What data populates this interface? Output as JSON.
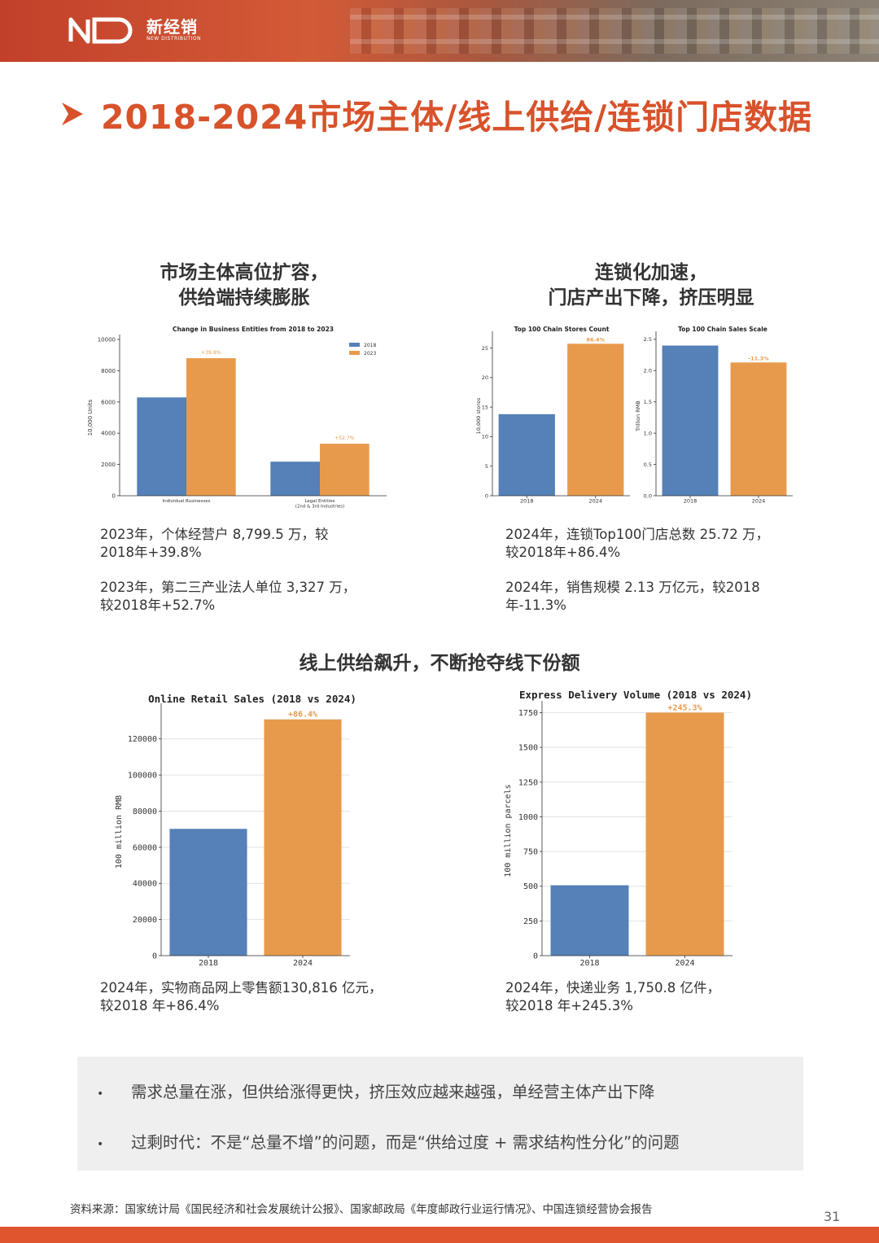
{
  "header": {
    "logo_cn": "新经销",
    "logo_en": "NEW DISTRIBUTION"
  },
  "page_title": "2018-2024市场主体/线上供给/连锁门店数据",
  "section1": {
    "heading_line1": "市场主体高位扩容，",
    "heading_line2": "供给端持续膨胀",
    "text1_line1": "2023年，个体经营户 8,799.5 万，较",
    "text1_line2": "2018年+39.8%",
    "text2_line1": "2023年，第二三产业法人单位 3,327 万，",
    "text2_line2": "较2018年+52.7%"
  },
  "section2": {
    "heading_line1": "连锁化加速，",
    "heading_line2": "门店产出下降，挤压明显",
    "text1_line1": "2024年，连锁Top100门店总数 25.72 万，",
    "text1_line2": "较2018年+86.4%",
    "text2_line1": "2024年，销售规模 2.13 万亿元，较2018",
    "text2_line2": "年-11.3%"
  },
  "section3": {
    "heading": "线上供给飙升，不断抢夺线下份额",
    "left_text_line1": "2024年，实物商品网上零售额130,816 亿元，",
    "left_text_line2": "较2018 年+86.4%",
    "right_text_line1": "2024年，快递业务 1,750.8 亿件，",
    "right_text_line2": "较2018 年+245.3%"
  },
  "summary": {
    "bullet": "•",
    "item1": "需求总量在涨，但供给涨得更快，挤压效应越来越强，单经营主体产出下降",
    "item2": "过剩时代：不是“总量不增”的问题，而是“供给过度 + 需求结构性分化”的问题"
  },
  "footer": {
    "source": "资料来源：国家统计局《国民经济和社会发展统计公报》、国家邮政局《年度邮政行业运行情况》、中国连锁经营协会报告",
    "page_number": "31"
  },
  "colors": {
    "accent": "#d8522b",
    "blue": "#5580b8",
    "orange": "#e89a4c"
  },
  "chart_data": [
    {
      "type": "bar",
      "title": "Change in Business Entities from 2018 to 2023",
      "ylabel": "10,000 Units",
      "xlabel": "",
      "categories": [
        "Individual Businesses",
        "Legal Entities\n(2nd & 3rd Industries)"
      ],
      "series": [
        {
          "name": "2018",
          "values": [
            6290,
            2180
          ]
        },
        {
          "name": "2023",
          "values": [
            8799.5,
            3327
          ]
        }
      ],
      "annotations": [
        "+39.8%",
        "+52.7%"
      ],
      "ylim": [
        0,
        10000
      ],
      "yticks": [
        0,
        2000,
        4000,
        6000,
        8000,
        10000
      ],
      "legend": "top-right"
    },
    {
      "type": "bar",
      "title": "Top 100 Chain Stores Count",
      "ylabel": "10,000 stores",
      "categories": [
        "2018",
        "2024"
      ],
      "values": [
        13.8,
        25.72
      ],
      "annotations": [
        "",
        "86.4%"
      ],
      "ylim": [
        0,
        27
      ],
      "yticks": [
        0,
        5,
        10,
        15,
        20,
        25
      ]
    },
    {
      "type": "bar",
      "title": "Top 100 Chain Sales Scale",
      "ylabel": "Trillion RMB",
      "categories": [
        "2018",
        "2024"
      ],
      "values": [
        2.4,
        2.13
      ],
      "annotations": [
        "",
        "-11.3%"
      ],
      "ylim": [
        0,
        2.55
      ],
      "yticks": [
        "0.0",
        "0.5",
        "1.0",
        "1.5",
        "2.0",
        "2.5"
      ]
    },
    {
      "type": "bar",
      "title": "Online Retail Sales (2018 vs 2024)",
      "ylabel": "100 million RMB",
      "categories": [
        "2018",
        "2024"
      ],
      "values": [
        70198,
        130816
      ],
      "annotations": [
        "",
        "+86.4%"
      ],
      "ylim": [
        0,
        137000
      ],
      "yticks": [
        0,
        20000,
        40000,
        60000,
        80000,
        100000,
        120000
      ],
      "grid": true
    },
    {
      "type": "bar",
      "title": "Express Delivery Volume (2018 vs 2024)",
      "ylabel": "100 million parcels",
      "categories": [
        "2018",
        "2024"
      ],
      "values": [
        507,
        1750.8
      ],
      "annotations": [
        "",
        "+245.3%"
      ],
      "ylim": [
        0,
        1800
      ],
      "yticks": [
        0,
        250,
        500,
        750,
        1000,
        1250,
        1500,
        1750
      ],
      "grid": true
    }
  ]
}
